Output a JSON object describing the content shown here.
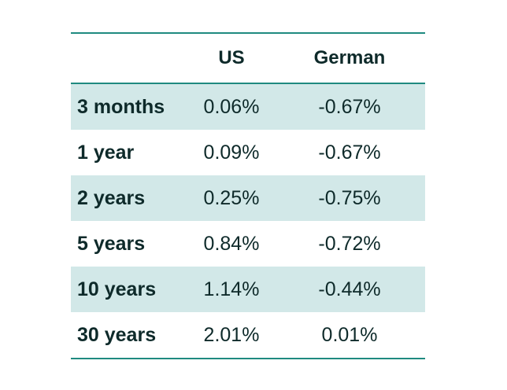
{
  "chart_data": {
    "type": "table",
    "columns": [
      "",
      "US",
      "German"
    ],
    "rows": [
      {
        "label": "3 months",
        "us": "0.06%",
        "german": "-0.67%"
      },
      {
        "label": "1 year",
        "us": "0.09%",
        "german": "-0.67%"
      },
      {
        "label": "2 years",
        "us": "0.25%",
        "german": "-0.75%"
      },
      {
        "label": "5 years",
        "us": "0.84%",
        "german": "-0.72%"
      },
      {
        "label": "10 years",
        "us": "1.14%",
        "german": "-0.44%"
      },
      {
        "label": "30 years",
        "us": "2.01%",
        "german": "0.01%"
      }
    ],
    "colors": {
      "rule": "#1f8a80",
      "shaded_row": "#d2e8e8",
      "text": "#0e2a2a"
    }
  }
}
